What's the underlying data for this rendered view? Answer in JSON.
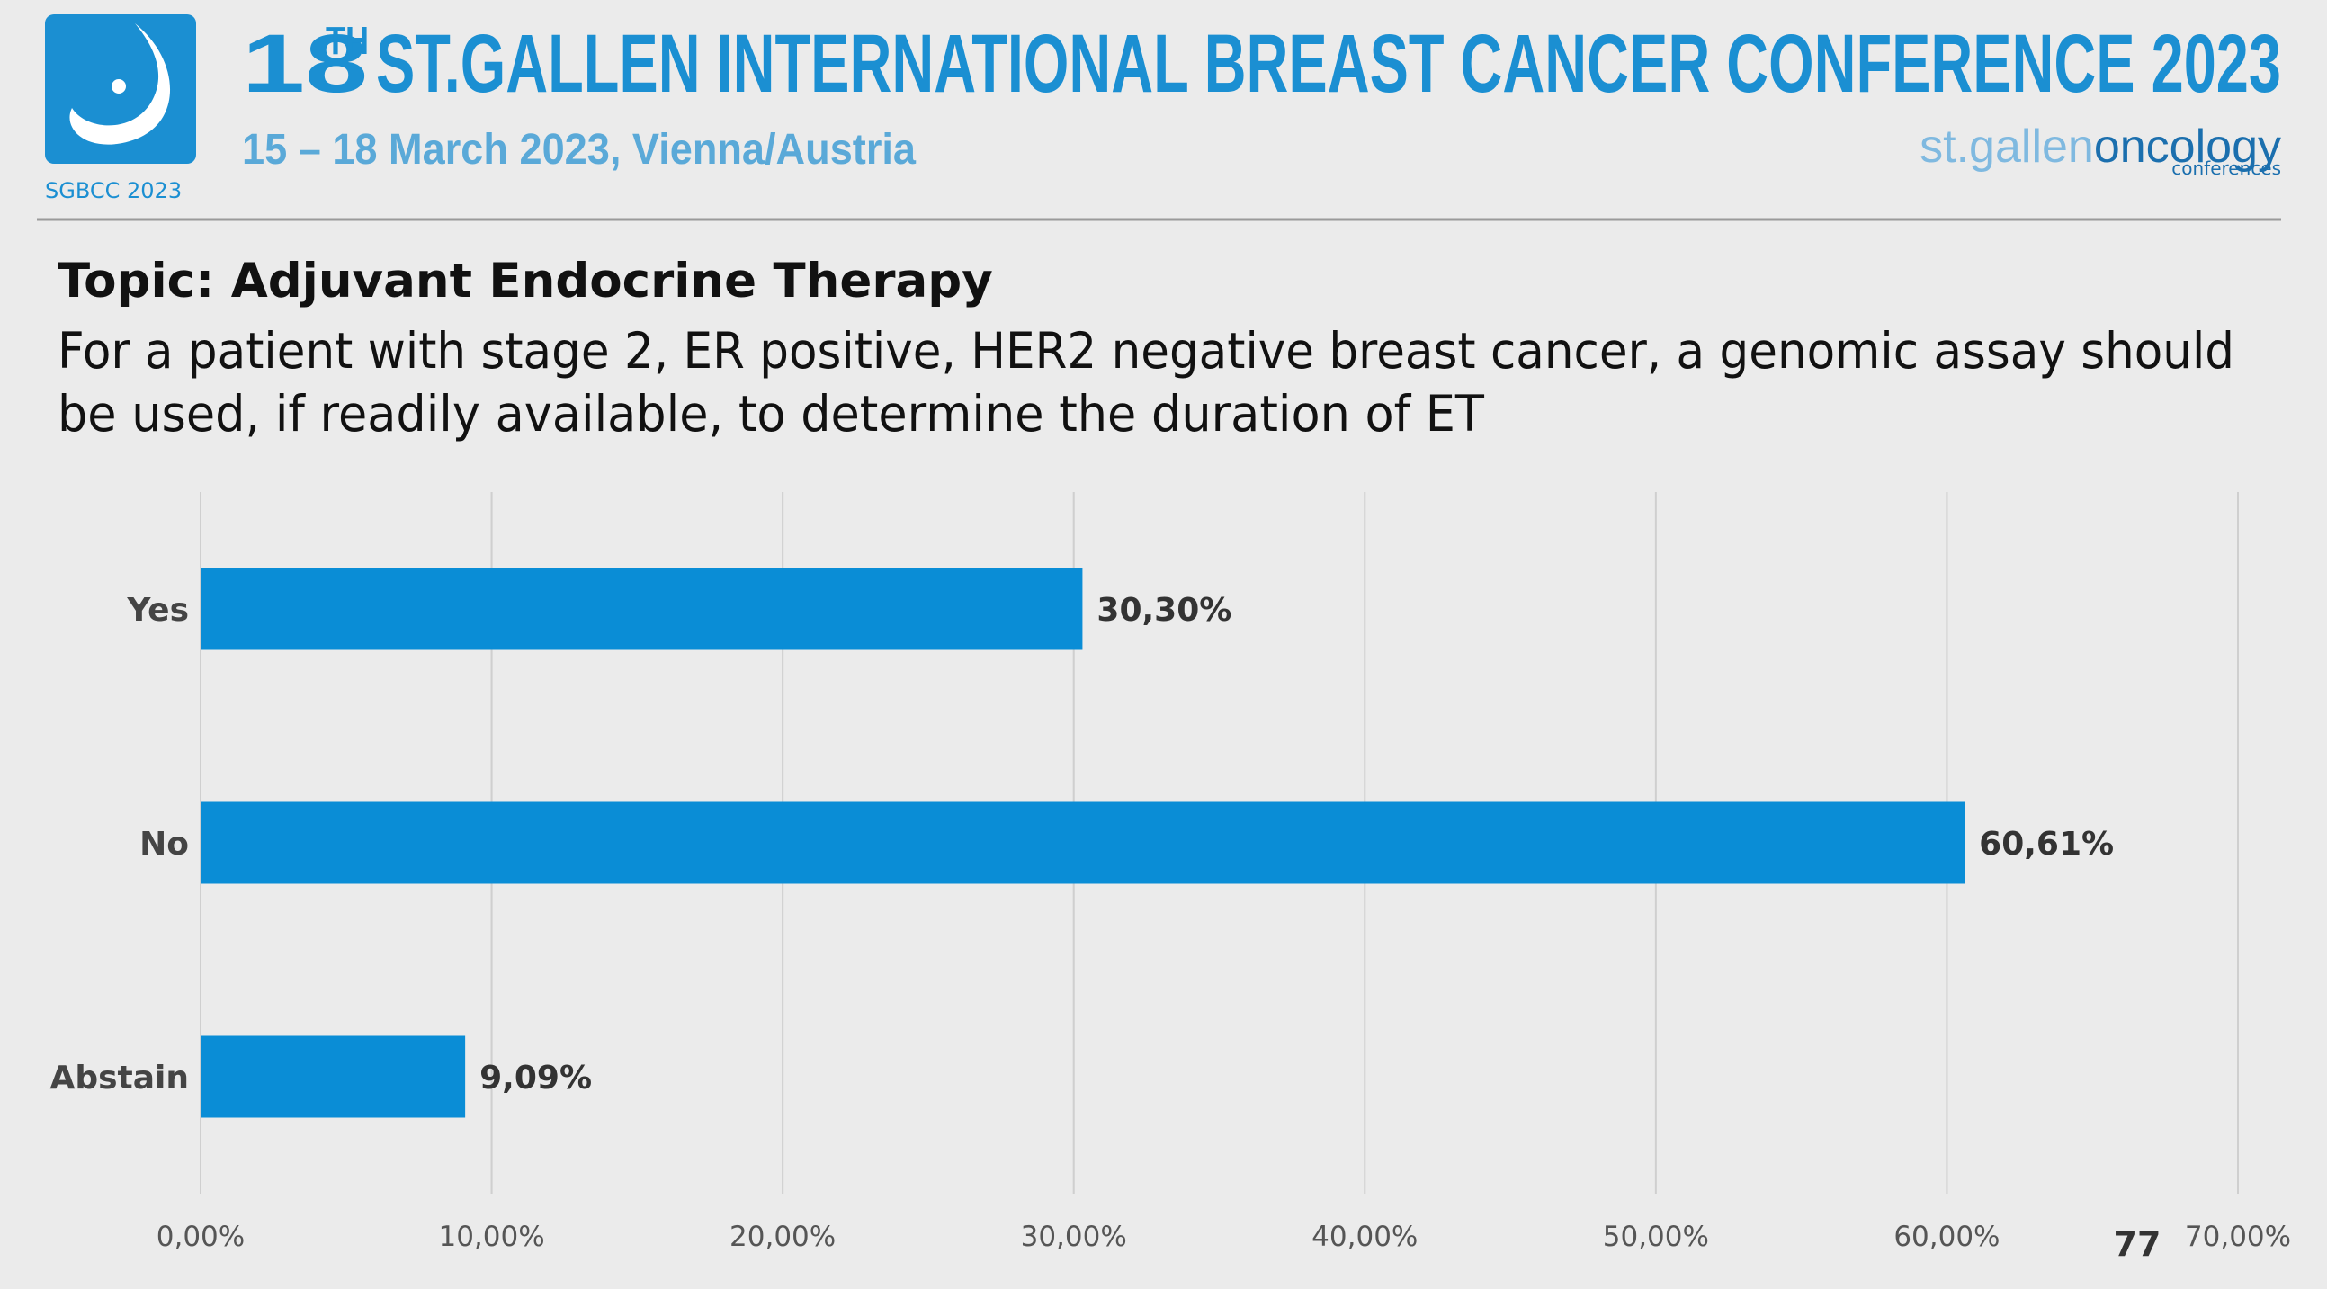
{
  "header": {
    "logo_caption": "SGBCC 2023",
    "title_number": "18",
    "title_sup": "TH",
    "title": "ST.GALLEN INTERNATIONAL BREAST CANCER CONFERENCE 2023",
    "subtitle": "15 – 18 March 2023, Vienna/Austria",
    "brand_a": "st.gallen",
    "brand_b": "oncology",
    "brand_c": "conferences"
  },
  "chart_data": {
    "type": "bar",
    "orientation": "horizontal",
    "title": "Topic: Adjuvant Endocrine Therapy",
    "question": [
      "For a patient with stage 2, ER positive, HER2 negative breast cancer, a genomic assay should",
      "be used, if readily available, to determine the duration of ET"
    ],
    "categories": [
      "Yes",
      "No",
      "Abstain"
    ],
    "values": [
      30.3,
      60.61,
      9.09
    ],
    "value_labels": [
      "30,30%",
      "60,61%",
      "9,09%"
    ],
    "color": "#0a8dd6",
    "xlim": [
      0,
      70
    ],
    "xticks": [
      {
        "value": 0,
        "label": "0,00%"
      },
      {
        "value": 10,
        "label": "10,00%"
      },
      {
        "value": 20,
        "label": "20,00%"
      },
      {
        "value": 30,
        "label": "30,00%"
      },
      {
        "value": 40,
        "label": "40,00%"
      },
      {
        "value": 50,
        "label": "50,00%"
      },
      {
        "value": 60,
        "label": "60,00%"
      },
      {
        "value": 70,
        "label": "70,00%"
      }
    ],
    "grid": true
  },
  "page_number": 77
}
